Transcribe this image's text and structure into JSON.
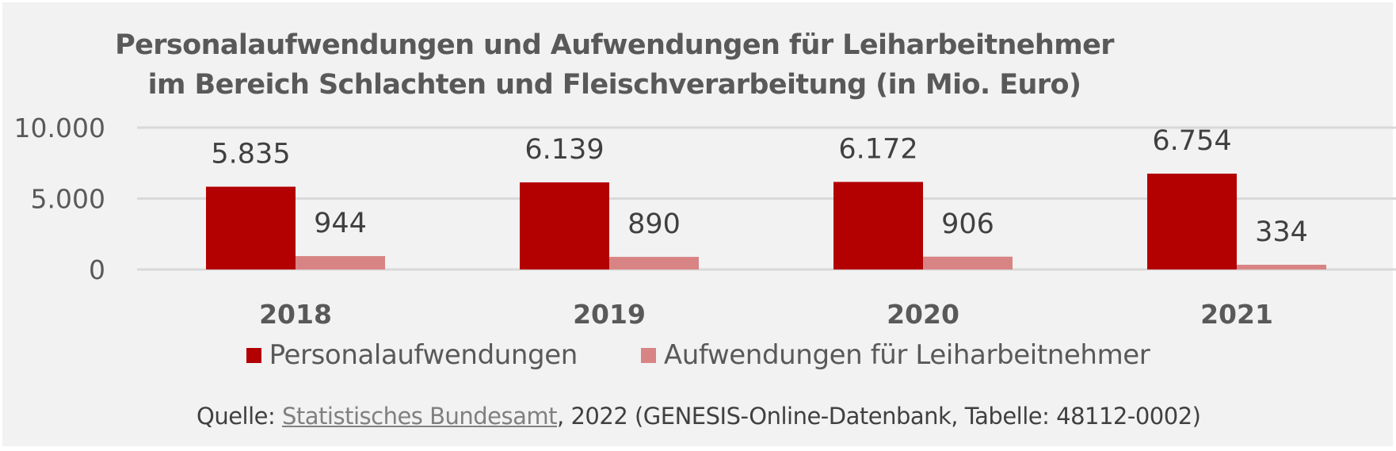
{
  "chart_data": {
    "type": "bar",
    "title": "Personalaufwendungen und Aufwendungen für Leiharbeitnehmer im Bereich Schlachten und Fleischverarbeitung (in Mio. Euro)",
    "title_lines": [
      "Personalaufwendungen und Aufwendungen für Leiharbeitnehmer",
      "im Bereich Schlachten und Fleischverarbeitung (in Mio. Euro)"
    ],
    "categories": [
      "2018",
      "2019",
      "2020",
      "2021"
    ],
    "series": [
      {
        "name": "Personalaufwendungen",
        "color": "#b30000",
        "values": [
          5835,
          6139,
          6172,
          6754
        ],
        "labels": [
          "5.835",
          "6.139",
          "6.172",
          "6.754"
        ]
      },
      {
        "name": "Aufwendungen für Leiharbeitnehmer",
        "color": "#d98484",
        "values": [
          944,
          890,
          906,
          334
        ],
        "labels": [
          "944",
          "890",
          "906",
          "334"
        ]
      }
    ],
    "xlabel": "",
    "ylabel": "",
    "ylim": [
      0,
      10000
    ],
    "yticks": [
      0,
      5000,
      10000
    ],
    "ytick_labels": [
      "0",
      "5.000",
      "10.000"
    ],
    "grid": true,
    "legend_position": "bottom"
  },
  "source": {
    "prefix": "Quelle: ",
    "link_text": "Statistisches Bundesamt",
    "suffix": ", 2022 (GENESIS-Online-Datenbank, Tabelle: 48112-0002)"
  },
  "colors": {
    "background": "#f2f2f2",
    "gridline": "#d9d9d9",
    "text": "#595959"
  }
}
